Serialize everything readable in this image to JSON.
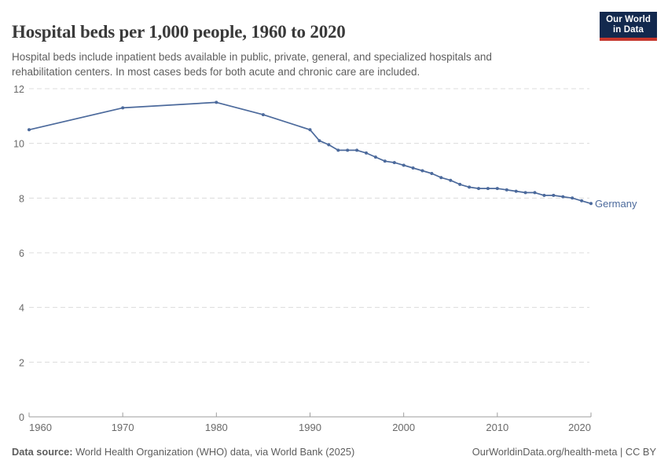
{
  "header": {
    "title": "Hospital beds per 1,000 people, 1960 to 2020",
    "subtitle": "Hospital beds include inpatient beds available in public, private, general, and specialized hospitals and rehabilitation centers. In most cases beds for both acute and chronic care are included."
  },
  "logo": {
    "line1": "Our World",
    "line2": "in Data",
    "bg_color": "#13294E",
    "stripe_color": "#C5362C"
  },
  "footer": {
    "source_label": "Data source:",
    "source_text": " World Health Organization (WHO) data, via World Bank (2025)",
    "right": "OurWorldinData.org/health-meta | CC BY"
  },
  "chart_data": {
    "type": "line",
    "title": "Hospital beds per 1,000 people, 1960 to 2020",
    "xlabel": "",
    "ylabel": "",
    "xlim": [
      1960,
      2020
    ],
    "ylim": [
      0,
      12
    ],
    "xticks": [
      1960,
      1970,
      1980,
      1990,
      2000,
      2010,
      2020
    ],
    "yticks": [
      0,
      2,
      4,
      6,
      8,
      10,
      12
    ],
    "grid": "horizontal-dashed",
    "legend": "inline-end-label",
    "colors": {
      "grid": "#dcdcdc",
      "axis": "#9e9e9e",
      "tick_label": "#696969"
    },
    "series": [
      {
        "name": "Germany",
        "color": "#4C6A9C",
        "x": [
          1960,
          1970,
          1980,
          1985,
          1990,
          1991,
          1992,
          1993,
          1994,
          1995,
          1996,
          1997,
          1998,
          1999,
          2000,
          2001,
          2002,
          2003,
          2004,
          2005,
          2006,
          2007,
          2008,
          2009,
          2010,
          2011,
          2012,
          2013,
          2014,
          2015,
          2016,
          2017,
          2018,
          2019,
          2020
        ],
        "values": [
          10.5,
          11.3,
          11.5,
          11.05,
          10.5,
          10.1,
          9.95,
          9.75,
          9.75,
          9.75,
          9.65,
          9.5,
          9.35,
          9.3,
          9.2,
          9.1,
          9.0,
          8.9,
          8.75,
          8.65,
          8.5,
          8.4,
          8.35,
          8.35,
          8.35,
          8.3,
          8.25,
          8.2,
          8.2,
          8.1,
          8.1,
          8.05,
          8.0,
          7.9,
          7.8
        ]
      }
    ]
  }
}
